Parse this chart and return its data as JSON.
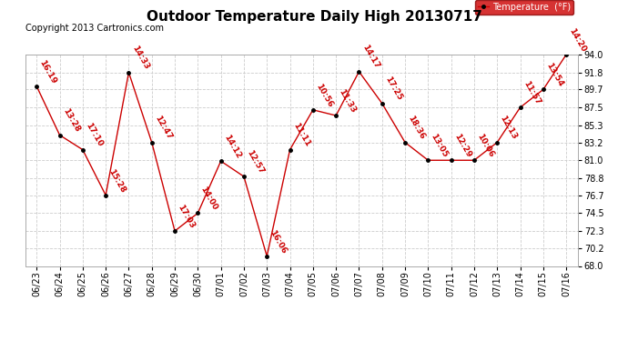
{
  "title": "Outdoor Temperature Daily High 20130717",
  "copyright": "Copyright 2013 Cartronics.com",
  "legend_label": "Temperature  (°F)",
  "dates": [
    "06/23",
    "06/24",
    "06/25",
    "06/26",
    "06/27",
    "06/28",
    "06/29",
    "06/30",
    "07/01",
    "07/02",
    "07/03",
    "07/04",
    "07/05",
    "07/06",
    "07/07",
    "07/08",
    "07/09",
    "07/10",
    "07/11",
    "07/12",
    "07/13",
    "07/14",
    "07/15",
    "07/16"
  ],
  "values": [
    90.1,
    84.1,
    82.3,
    76.7,
    91.8,
    83.2,
    72.3,
    74.5,
    80.9,
    79.0,
    69.2,
    82.3,
    87.2,
    86.5,
    91.9,
    88.0,
    83.2,
    81.0,
    81.0,
    81.0,
    83.2,
    87.5,
    89.7,
    94.0
  ],
  "labels": [
    "16:19",
    "13:28",
    "17:10",
    "15:28",
    "14:33",
    "12:47",
    "17:03",
    "14:00",
    "14:12",
    "12:57",
    "16:06",
    "11:11",
    "10:56",
    "11:33",
    "14:17",
    "17:25",
    "18:36",
    "13:05",
    "12:29",
    "10:06",
    "12:13",
    "11:57",
    "13:54",
    "14:20"
  ],
  "ylim": [
    68.0,
    94.0
  ],
  "yticks": [
    68.0,
    70.2,
    72.3,
    74.5,
    76.7,
    78.8,
    81.0,
    83.2,
    85.3,
    87.5,
    89.7,
    91.8,
    94.0
  ],
  "line_color": "#cc0000",
  "marker_color": "#000000",
  "label_color": "#cc0000",
  "bg_color": "#ffffff",
  "grid_color": "#cccccc",
  "title_fontsize": 11,
  "label_fontsize": 6.5,
  "tick_fontsize": 7,
  "copyright_fontsize": 7,
  "legend_bg": "#cc0000",
  "legend_fg": "#ffffff"
}
